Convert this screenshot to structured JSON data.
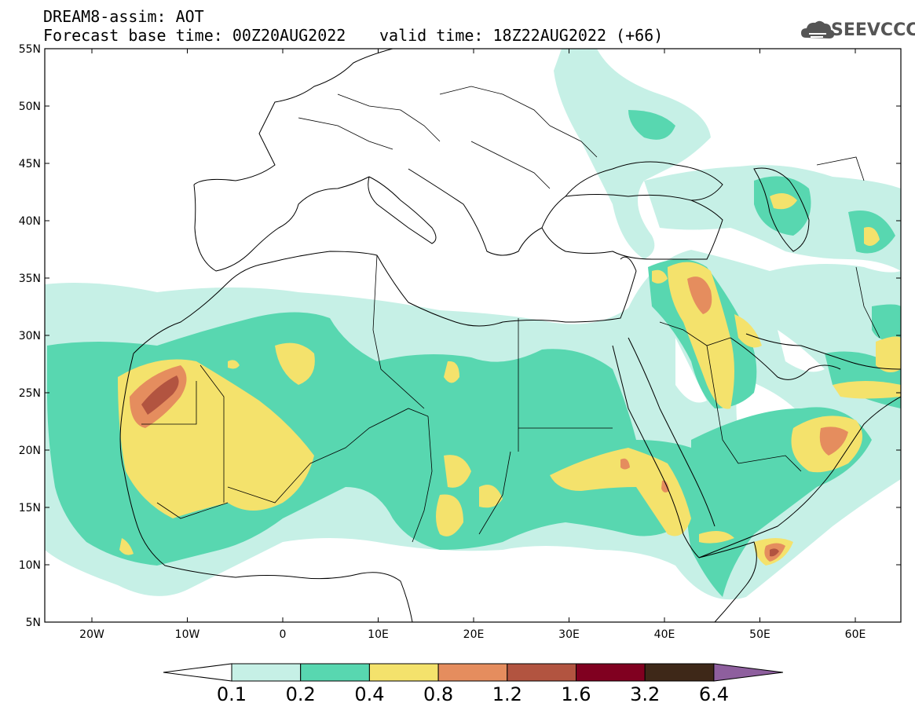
{
  "header": {
    "title": "DREAM8-assim: AOT",
    "forecast_base": "Forecast base time: 00Z20AUG2022",
    "valid_time": "valid time: 18Z22AUG2022 (+66)"
  },
  "logo": {
    "text": "SEEVCCC",
    "icon": "cloud-icon"
  },
  "map": {
    "lat_labels": [
      "55N",
      "50N",
      "45N",
      "40N",
      "35N",
      "30N",
      "25N",
      "20N",
      "15N",
      "10N",
      "5N"
    ],
    "lon_labels": [
      "20W",
      "10W",
      "0",
      "10E",
      "20E",
      "30E",
      "40E",
      "50E",
      "60E"
    ]
  },
  "colorbar": {
    "labels": [
      "0.1",
      "0.2",
      "0.4",
      "0.8",
      "1.2",
      "1.6",
      "3.2",
      "6.4"
    ],
    "colors": [
      "#ffffff",
      "#c6f0e6",
      "#58d7b0",
      "#f4e26c",
      "#e58d5e",
      "#b25440",
      "#800020",
      "#3e2818",
      "#8e5f9e"
    ]
  },
  "colors": {
    "c1": "#c6f0e6",
    "c2": "#58d7b0",
    "c3": "#f4e26c",
    "c4": "#e58d5e",
    "c5": "#b25440"
  }
}
